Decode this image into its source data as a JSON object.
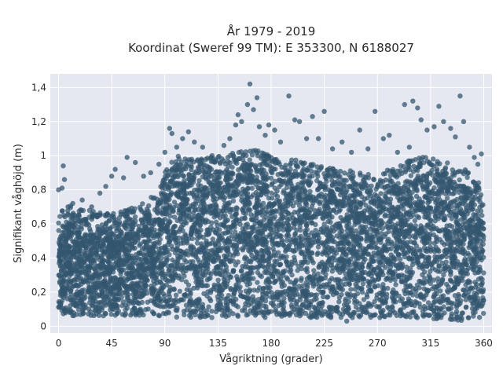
{
  "chart_data": {
    "type": "scatter",
    "title": "År 1979 - 2019",
    "subtitle": "Koordinat (Sweref 99 TM): E 353300, N 6188027",
    "xlabel": "Vågriktning (grader)",
    "ylabel": "Signifikant våghöjd (m)",
    "xlim": [
      -7,
      367
    ],
    "ylim": [
      -0.04,
      1.48
    ],
    "x_ticks": [
      0,
      45,
      90,
      135,
      180,
      225,
      270,
      315,
      360
    ],
    "x_tick_labels": [
      "0",
      "45",
      "90",
      "135",
      "180",
      "225",
      "270",
      "315",
      "360"
    ],
    "y_ticks": [
      0,
      0.2,
      0.4,
      0.6,
      0.8,
      1.0,
      1.2,
      1.4
    ],
    "y_tick_labels": [
      "0",
      "0,2",
      "0,4",
      "0,6",
      "0,8",
      "1",
      "1,2",
      "1,4"
    ],
    "grid": true,
    "marker_color": "#33566f",
    "plot_background": "#e5e8f0",
    "density_envelope": {
      "x": [
        0,
        5,
        10,
        20,
        30,
        45,
        60,
        75,
        85,
        90,
        100,
        120,
        135,
        150,
        165,
        180,
        200,
        225,
        240,
        260,
        270,
        285,
        300,
        315,
        330,
        345,
        355,
        360
      ],
      "y_low": [
        0.08,
        0.07,
        0.06,
        0.06,
        0.06,
        0.06,
        0.06,
        0.06,
        0.06,
        0.05,
        0.05,
        0.05,
        0.05,
        0.05,
        0.05,
        0.05,
        0.05,
        0.05,
        0.05,
        0.05,
        0.05,
        0.05,
        0.05,
        0.04,
        0.03,
        0.03,
        0.04,
        0.06
      ],
      "y_high": [
        0.52,
        0.56,
        0.57,
        0.55,
        0.54,
        0.52,
        0.55,
        0.6,
        0.65,
        0.77,
        0.86,
        0.84,
        0.86,
        0.88,
        0.9,
        0.86,
        0.84,
        0.8,
        0.78,
        0.76,
        0.75,
        0.8,
        0.84,
        0.86,
        0.82,
        0.78,
        0.72,
        0.6
      ]
    },
    "outliers": [
      {
        "x": 0,
        "y": 0.8
      },
      {
        "x": 3,
        "y": 0.81
      },
      {
        "x": 4,
        "y": 0.94
      },
      {
        "x": 5,
        "y": 0.86
      },
      {
        "x": 8,
        "y": 0.7
      },
      {
        "x": 12,
        "y": 0.72
      },
      {
        "x": 20,
        "y": 0.74
      },
      {
        "x": 28,
        "y": 0.7
      },
      {
        "x": 35,
        "y": 0.78
      },
      {
        "x": 40,
        "y": 0.82
      },
      {
        "x": 45,
        "y": 0.88
      },
      {
        "x": 48,
        "y": 0.92
      },
      {
        "x": 55,
        "y": 0.87
      },
      {
        "x": 58,
        "y": 0.99
      },
      {
        "x": 65,
        "y": 0.96
      },
      {
        "x": 72,
        "y": 0.88
      },
      {
        "x": 78,
        "y": 0.9
      },
      {
        "x": 85,
        "y": 0.95
      },
      {
        "x": 90,
        "y": 1.02
      },
      {
        "x": 94,
        "y": 1.16
      },
      {
        "x": 96,
        "y": 1.13
      },
      {
        "x": 100,
        "y": 1.05
      },
      {
        "x": 105,
        "y": 1.1
      },
      {
        "x": 110,
        "y": 1.14
      },
      {
        "x": 115,
        "y": 1.08
      },
      {
        "x": 122,
        "y": 1.05
      },
      {
        "x": 130,
        "y": 1.0
      },
      {
        "x": 140,
        "y": 1.06
      },
      {
        "x": 145,
        "y": 1.1
      },
      {
        "x": 150,
        "y": 1.18
      },
      {
        "x": 152,
        "y": 1.24
      },
      {
        "x": 155,
        "y": 1.2
      },
      {
        "x": 160,
        "y": 1.3
      },
      {
        "x": 162,
        "y": 1.42
      },
      {
        "x": 165,
        "y": 1.27
      },
      {
        "x": 168,
        "y": 1.34
      },
      {
        "x": 170,
        "y": 1.17
      },
      {
        "x": 175,
        "y": 1.12
      },
      {
        "x": 178,
        "y": 1.18
      },
      {
        "x": 183,
        "y": 1.15
      },
      {
        "x": 188,
        "y": 1.08
      },
      {
        "x": 195,
        "y": 1.35
      },
      {
        "x": 200,
        "y": 1.21
      },
      {
        "x": 204,
        "y": 1.2
      },
      {
        "x": 210,
        "y": 1.1
      },
      {
        "x": 215,
        "y": 1.23
      },
      {
        "x": 220,
        "y": 1.1
      },
      {
        "x": 225,
        "y": 1.26
      },
      {
        "x": 232,
        "y": 1.04
      },
      {
        "x": 240,
        "y": 1.08
      },
      {
        "x": 248,
        "y": 1.02
      },
      {
        "x": 255,
        "y": 1.15
      },
      {
        "x": 262,
        "y": 1.04
      },
      {
        "x": 268,
        "y": 1.26
      },
      {
        "x": 275,
        "y": 1.1
      },
      {
        "x": 280,
        "y": 1.12
      },
      {
        "x": 287,
        "y": 1.02
      },
      {
        "x": 293,
        "y": 1.3
      },
      {
        "x": 297,
        "y": 1.05
      },
      {
        "x": 300,
        "y": 1.32
      },
      {
        "x": 304,
        "y": 1.28
      },
      {
        "x": 307,
        "y": 1.21
      },
      {
        "x": 312,
        "y": 1.15
      },
      {
        "x": 318,
        "y": 1.17
      },
      {
        "x": 322,
        "y": 1.29
      },
      {
        "x": 326,
        "y": 1.2
      },
      {
        "x": 332,
        "y": 1.16
      },
      {
        "x": 336,
        "y": 1.11
      },
      {
        "x": 340,
        "y": 1.35
      },
      {
        "x": 343,
        "y": 1.2
      },
      {
        "x": 348,
        "y": 1.05
      },
      {
        "x": 352,
        "y": 0.99
      },
      {
        "x": 355,
        "y": 0.95
      },
      {
        "x": 358,
        "y": 1.01
      },
      {
        "x": 244,
        "y": 0.03
      }
    ]
  }
}
